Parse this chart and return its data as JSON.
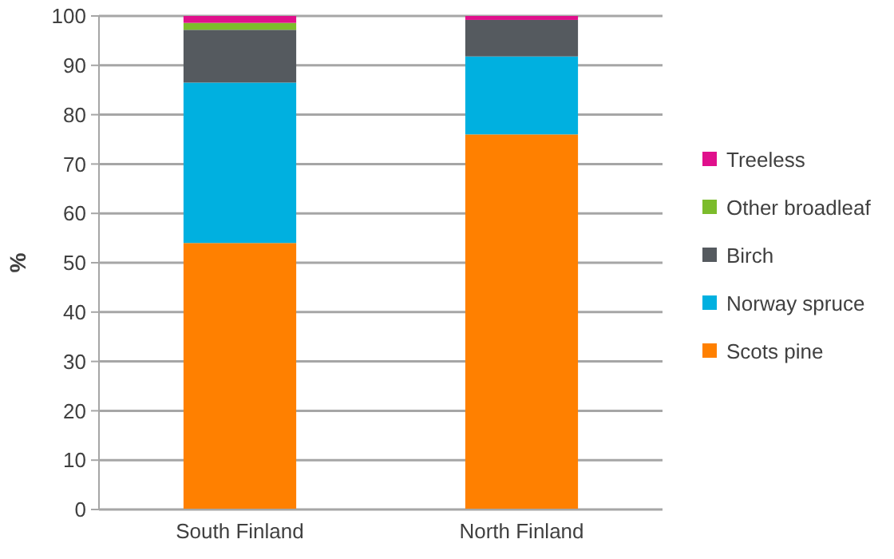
{
  "chart_data": {
    "type": "bar",
    "stacked": true,
    "ylabel": "%",
    "categories": [
      "South Finland",
      "North Finland"
    ],
    "series": [
      {
        "name": "Scots pine",
        "color": "#ff8000",
        "values": [
          54,
          76
        ]
      },
      {
        "name": "Norway spruce",
        "color": "#00b0e0",
        "values": [
          32.5,
          15.8
        ]
      },
      {
        "name": "Birch",
        "color": "#555a5f",
        "values": [
          10.7,
          7.4
        ]
      },
      {
        "name": "Other broadleaf",
        "color": "#7cbc2c",
        "values": [
          1.4,
          0
        ]
      },
      {
        "name": "Treeless",
        "color": "#e0108c",
        "values": [
          1.4,
          0.8
        ]
      }
    ],
    "ylim": [
      0,
      100
    ],
    "yticks": [
      0,
      10,
      20,
      30,
      40,
      50,
      60,
      70,
      80,
      90,
      100
    ],
    "grid": "y",
    "legend": "right"
  }
}
